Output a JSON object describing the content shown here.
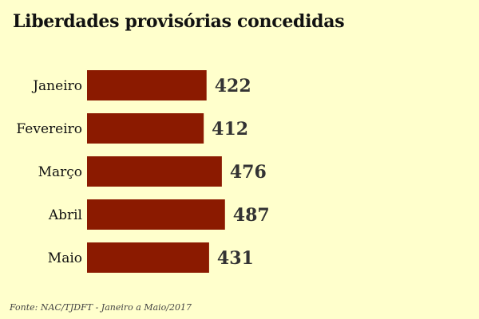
{
  "chart_data": {
    "type": "bar",
    "orientation": "horizontal",
    "title": "Liberdades provisórias concedidas",
    "categories": [
      "Janeiro",
      "Fevereiro",
      "Março",
      "Abril",
      "Maio"
    ],
    "values": [
      422,
      412,
      476,
      487,
      431
    ],
    "xlabel": "",
    "ylabel": "",
    "grid": false,
    "legend": "none",
    "bar_color": "#8b1a00",
    "label_color": "#333333"
  },
  "source": "Fonte: NAC/TJDFT - Janeiro a Maio/2017"
}
